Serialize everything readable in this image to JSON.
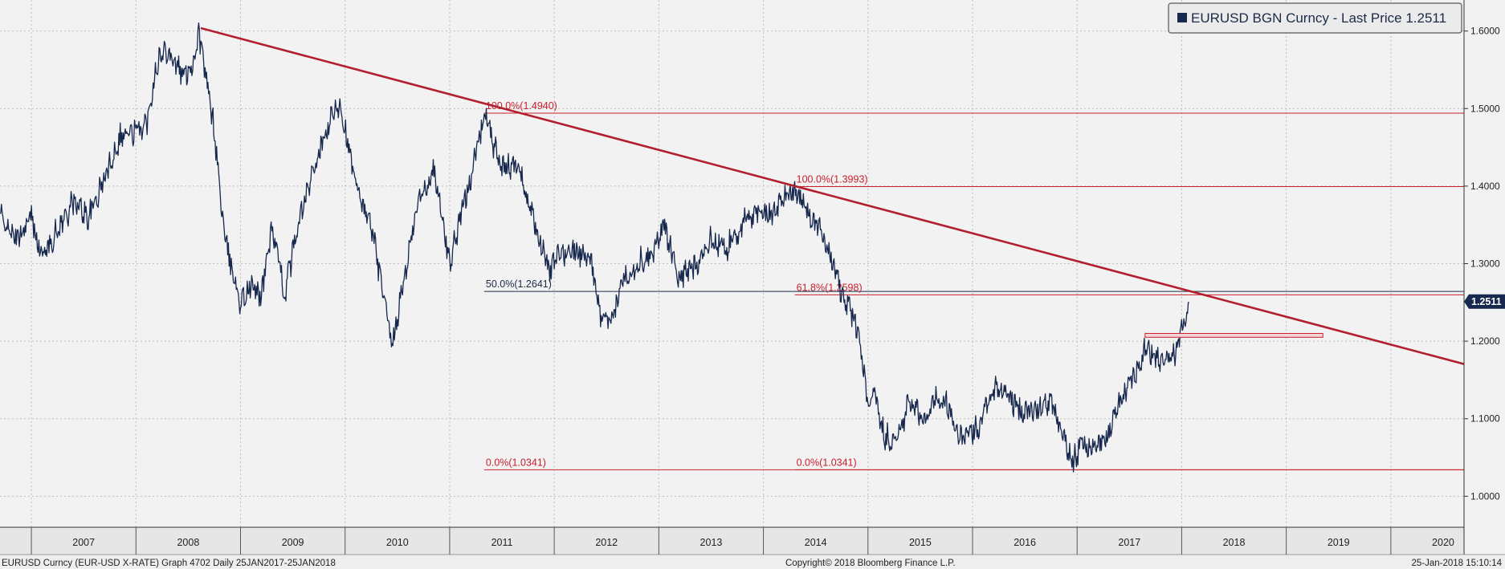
{
  "chart_data": {
    "type": "line",
    "title": "EURUSD BGN Curncy - Last Price 1.2511",
    "legend": {
      "label": "EURUSD BGN Curncy - Last Price 1.2511",
      "position": "top-right"
    },
    "ylim": [
      0.96,
      1.64
    ],
    "y_ticks": [
      "1.0000",
      "1.1000",
      "1.2000",
      "1.3000",
      "1.4000",
      "1.5000",
      "1.6000"
    ],
    "y_tick_values": [
      1.0,
      1.1,
      1.2,
      1.3,
      1.4,
      1.5,
      1.6
    ],
    "x_range": [
      2006.7,
      2020.7
    ],
    "x_tick_labels": [
      "2007",
      "2008",
      "2009",
      "2010",
      "2011",
      "2012",
      "2013",
      "2014",
      "2015",
      "2016",
      "2017",
      "2018",
      "2019",
      "2020"
    ],
    "last_price": {
      "label": "1.2511",
      "value": 1.2511
    },
    "series": [
      {
        "name": "EURUSD BGN Curncy",
        "color": "#17284e",
        "points": [
          [
            2006.7,
            1.362
          ],
          [
            2006.85,
            1.33
          ],
          [
            2007.0,
            1.36
          ],
          [
            2007.1,
            1.31
          ],
          [
            2007.25,
            1.342
          ],
          [
            2007.4,
            1.38
          ],
          [
            2007.55,
            1.36
          ],
          [
            2007.7,
            1.41
          ],
          [
            2007.85,
            1.465
          ],
          [
            2008.0,
            1.47
          ],
          [
            2008.1,
            1.48
          ],
          [
            2008.2,
            1.56
          ],
          [
            2008.3,
            1.577
          ],
          [
            2008.45,
            1.542
          ],
          [
            2008.55,
            1.56
          ],
          [
            2008.6,
            1.6
          ],
          [
            2008.75,
            1.47
          ],
          [
            2008.85,
            1.33
          ],
          [
            2009.0,
            1.25
          ],
          [
            2009.1,
            1.27
          ],
          [
            2009.2,
            1.26
          ],
          [
            2009.3,
            1.35
          ],
          [
            2009.42,
            1.26
          ],
          [
            2009.55,
            1.35
          ],
          [
            2009.7,
            1.42
          ],
          [
            2009.85,
            1.48
          ],
          [
            2009.95,
            1.51
          ],
          [
            2010.1,
            1.4
          ],
          [
            2010.25,
            1.35
          ],
          [
            2010.4,
            1.23
          ],
          [
            2010.45,
            1.19
          ],
          [
            2010.55,
            1.27
          ],
          [
            2010.7,
            1.38
          ],
          [
            2010.85,
            1.42
          ],
          [
            2011.0,
            1.3
          ],
          [
            2011.1,
            1.36
          ],
          [
            2011.25,
            1.44
          ],
          [
            2011.33,
            1.494
          ],
          [
            2011.5,
            1.42
          ],
          [
            2011.65,
            1.43
          ],
          [
            2011.8,
            1.36
          ],
          [
            2011.95,
            1.29
          ],
          [
            2012.05,
            1.31
          ],
          [
            2012.2,
            1.32
          ],
          [
            2012.35,
            1.3
          ],
          [
            2012.45,
            1.23
          ],
          [
            2012.55,
            1.22
          ],
          [
            2012.65,
            1.28
          ],
          [
            2012.8,
            1.3
          ],
          [
            2012.95,
            1.32
          ],
          [
            2013.05,
            1.35
          ],
          [
            2013.2,
            1.28
          ],
          [
            2013.35,
            1.3
          ],
          [
            2013.5,
            1.33
          ],
          [
            2013.65,
            1.32
          ],
          [
            2013.8,
            1.35
          ],
          [
            2013.95,
            1.37
          ],
          [
            2014.05,
            1.36
          ],
          [
            2014.2,
            1.385
          ],
          [
            2014.3,
            1.399
          ],
          [
            2014.45,
            1.36
          ],
          [
            2014.6,
            1.33
          ],
          [
            2014.75,
            1.26
          ],
          [
            2014.9,
            1.22
          ],
          [
            2015.0,
            1.12
          ],
          [
            2015.05,
            1.14
          ],
          [
            2015.15,
            1.08
          ],
          [
            2015.25,
            1.07
          ],
          [
            2015.4,
            1.12
          ],
          [
            2015.55,
            1.1
          ],
          [
            2015.65,
            1.13
          ],
          [
            2015.75,
            1.12
          ],
          [
            2015.9,
            1.07
          ],
          [
            2016.05,
            1.09
          ],
          [
            2016.2,
            1.14
          ],
          [
            2016.35,
            1.13
          ],
          [
            2016.45,
            1.11
          ],
          [
            2016.6,
            1.11
          ],
          [
            2016.75,
            1.12
          ],
          [
            2016.85,
            1.09
          ],
          [
            2016.95,
            1.04
          ],
          [
            2017.05,
            1.07
          ],
          [
            2017.15,
            1.06
          ],
          [
            2017.3,
            1.08
          ],
          [
            2017.4,
            1.12
          ],
          [
            2017.55,
            1.16
          ],
          [
            2017.65,
            1.19
          ],
          [
            2017.75,
            1.18
          ],
          [
            2017.85,
            1.17
          ],
          [
            2017.95,
            1.19
          ],
          [
            2018.07,
            1.25
          ]
        ]
      }
    ],
    "trend_line": {
      "color": "#b21f2e",
      "from": [
        2008.62,
        1.6038
      ],
      "to": [
        2020.7,
        1.1705
      ]
    },
    "fibonacci": [
      {
        "label": "100.0%(1.4940)",
        "value": 1.494,
        "from_x": 2011.33,
        "color": "#c8202c"
      },
      {
        "label": "100.0%(1.3993)",
        "value": 1.3993,
        "from_x": 2014.3,
        "color": "#c8202c"
      },
      {
        "label": "50.0%(1.2641)",
        "value": 1.2641,
        "from_x": 2011.33,
        "color": "#1b2a48"
      },
      {
        "label": "61.8%(1.2598)",
        "value": 1.2598,
        "from_x": 2014.3,
        "color": "#c8202c"
      },
      {
        "label": "0.0%(1.0341)",
        "value": 1.0341,
        "from_x": 2011.33,
        "color": "#c8202c"
      },
      {
        "label": "0.0%(1.0341)",
        "value": 1.0341,
        "from_x": 2014.3,
        "color": "#c8202c"
      }
    ],
    "support_zone": {
      "from_x": 2017.65,
      "to_x": 2019.35,
      "low": 1.205,
      "high": 1.21,
      "color": "#c8202c"
    },
    "footer": {
      "left": "EURUSD Curncy (EUR-USD X-RATE) Graph 4702  Daily 25JAN2017-25JAN2018",
      "center": "Copyright© 2018 Bloomberg Finance L.P.",
      "right": "25-Jan-2018 15:10:14"
    }
  }
}
